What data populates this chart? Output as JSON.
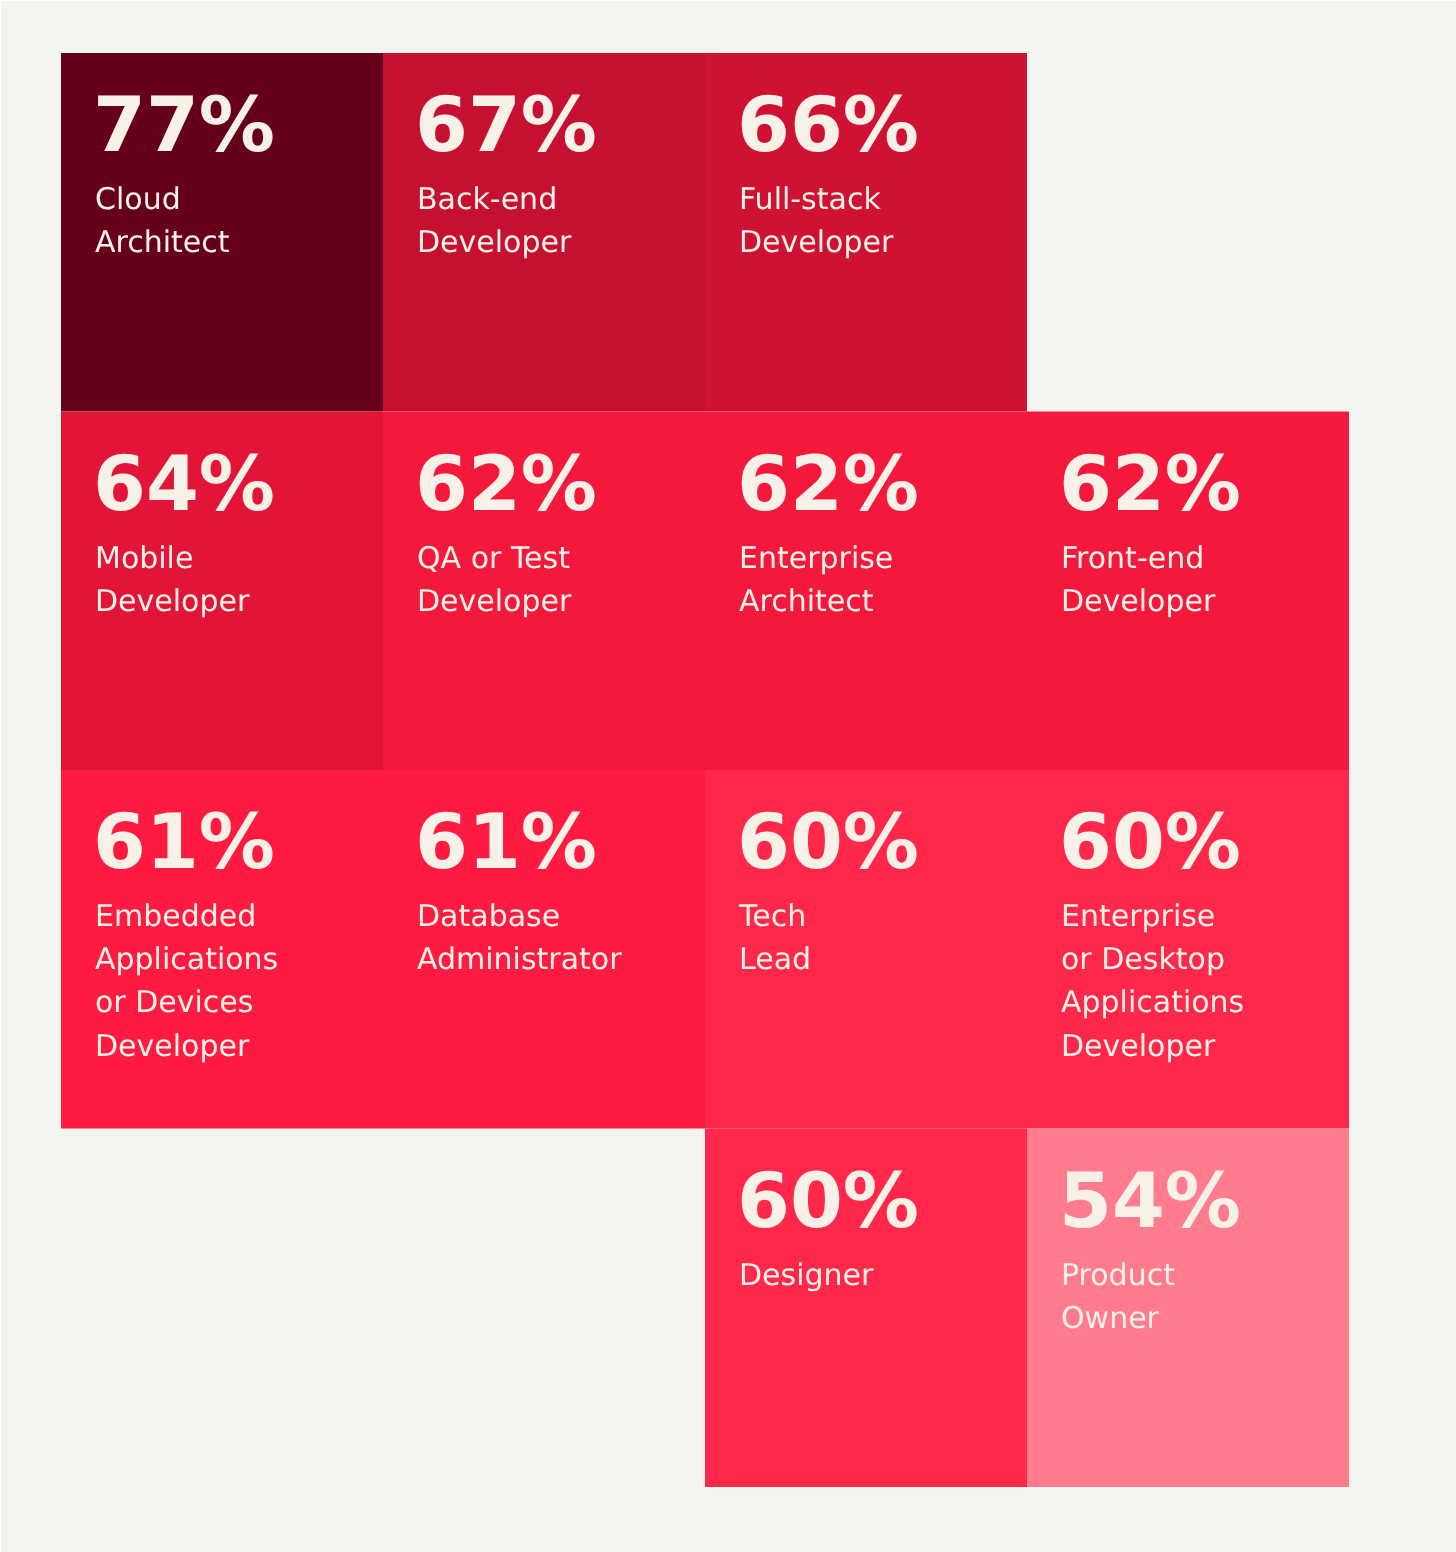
{
  "chart_data": {
    "type": "heatmap",
    "categories": [
      null,
      null,
      null,
      null
    ],
    "y_categories": [
      null,
      null,
      null,
      null
    ],
    "cells": [
      [
        77,
        67,
        66,
        null
      ],
      [
        64,
        62,
        62,
        62
      ],
      [
        61,
        61,
        60,
        60
      ],
      [
        null,
        null,
        60,
        54
      ]
    ],
    "cell_labels": [
      [
        "77%\nCloud\nArchitect",
        "67%\nBack-end\nDeveloper",
        "66%\nFull-stack\nDeveloper",
        null
      ],
      [
        "64%\nMobile\nDeveloper",
        "62%\nQA or Test\nDeveloper",
        "62%\nEnterprise\nArchitect",
        "62%\nFront-end\nDeveloper"
      ],
      [
        "61%\nEmbedded\nApplications\nor Devices\nDeveloper",
        "61%\nDatabase\nAdministrator",
        "60%\nTech\nLead",
        "60%\nEnterprise\nor Desktop\nApplications\nDeveloper"
      ],
      [
        null,
        null,
        "60%\nDesigner",
        "54%\nProduct\nOwner"
      ]
    ]
  }
}
